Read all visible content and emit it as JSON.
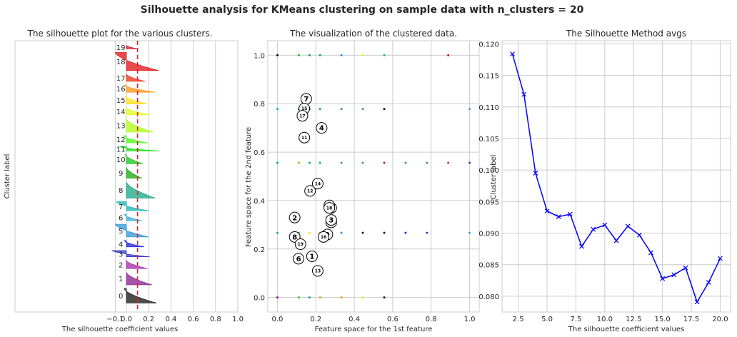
{
  "figure": {
    "suptitle": "Silhouette analysis for KMeans clustering on sample data with n_clusters = 20"
  },
  "chart_data": [
    {
      "type": "area",
      "title": "The silhouette plot for the various clusters.",
      "xlabel": "The silhouette coefficient values",
      "ylabel": "Cluster label",
      "xlim": [
        -1.0,
        1.0
      ],
      "xticks": [
        -0.1,
        0.0,
        0.2,
        0.4,
        0.6,
        0.8,
        1.0
      ],
      "xtick_labels": [
        "−0.1",
        "0.0",
        "0.2",
        "0.4",
        "0.6",
        "0.8",
        "1.0"
      ],
      "ylim": [
        0,
        300
      ],
      "avg_silhouette": 0.1,
      "grid": true,
      "clusters": [
        {
          "label": "0",
          "y0": 10,
          "size": 16,
          "max": 0.27,
          "min": -0.02,
          "color": "#000000"
        },
        {
          "label": "1",
          "y0": 30,
          "size": 14,
          "max": 0.23,
          "min": 0.0,
          "color": "#7e0a87"
        },
        {
          "label": "2",
          "y0": 48,
          "size": 9,
          "max": 0.19,
          "min": 0.0,
          "color": "#9c16a8"
        },
        {
          "label": "3",
          "y0": 61,
          "size": 7,
          "max": 0.21,
          "min": -0.13,
          "color": "#2828c8"
        },
        {
          "label": "4",
          "y0": 72,
          "size": 7,
          "max": 0.16,
          "min": -0.02,
          "color": "#1010d8"
        },
        {
          "label": "5",
          "y0": 83,
          "size": 14,
          "max": 0.2,
          "min": -0.1,
          "color": "#1c8ed4"
        },
        {
          "label": "6",
          "y0": 101,
          "size": 7,
          "max": 0.14,
          "min": -0.02,
          "color": "#20a6d6"
        },
        {
          "label": "7",
          "y0": 112,
          "size": 10,
          "max": 0.2,
          "min": -0.09,
          "color": "#00b0b0"
        },
        {
          "label": "8",
          "y0": 126,
          "size": 18,
          "max": 0.26,
          "min": 0.0,
          "color": "#00a07a"
        },
        {
          "label": "9",
          "y0": 148,
          "size": 12,
          "max": 0.14,
          "min": 0.0,
          "color": "#00a300"
        },
        {
          "label": "10",
          "y0": 164,
          "size": 10,
          "max": 0.15,
          "min": -0.01,
          "color": "#00c400"
        },
        {
          "label": "11",
          "y0": 178,
          "size": 5,
          "max": 0.3,
          "min": -0.06,
          "color": "#00e000"
        },
        {
          "label": "12",
          "y0": 187,
          "size": 8,
          "max": 0.19,
          "min": -0.03,
          "color": "#33ff00"
        },
        {
          "label": "13",
          "y0": 199,
          "size": 15,
          "max": 0.24,
          "min": 0.0,
          "color": "#a8ff00"
        },
        {
          "label": "14",
          "y0": 218,
          "size": 8,
          "max": 0.21,
          "min": 0.0,
          "color": "#dfff00"
        },
        {
          "label": "15",
          "y0": 230,
          "size": 9,
          "max": 0.19,
          "min": -0.01,
          "color": "#ffdd00"
        },
        {
          "label": "16",
          "y0": 243,
          "size": 8,
          "max": 0.26,
          "min": -0.02,
          "color": "#ff8d00"
        },
        {
          "label": "17",
          "y0": 255,
          "size": 8,
          "max": 0.17,
          "min": 0.0,
          "color": "#f02000"
        },
        {
          "label": "18",
          "y0": 267,
          "size": 20,
          "max": 0.29,
          "min": -0.1,
          "color": "#dd0000"
        },
        {
          "label": "19",
          "y0": 291,
          "size": 4,
          "max": 0.1,
          "min": 0.0,
          "color": "#c80000"
        }
      ]
    },
    {
      "type": "scatter",
      "title": "The visualization of the clustered data.",
      "xlabel": "Feature space for the 1st feature",
      "ylabel": "Feature space for the 2nd feature",
      "xlim": [
        -0.05,
        1.05
      ],
      "ylim": [
        -0.06,
        1.06
      ],
      "xticks": [
        0.0,
        0.2,
        0.4,
        0.6,
        0.8,
        1.0
      ],
      "yticks": [
        0.0,
        0.2,
        0.4,
        0.6,
        0.8,
        1.0
      ],
      "xtick_labels": [
        "0.0",
        "0.2",
        "0.4",
        "0.6",
        "0.8",
        "1.0"
      ],
      "ytick_labels": [
        "0.0",
        "0.2",
        "0.4",
        "0.6",
        "0.8",
        "1.0"
      ],
      "grid": true,
      "points": [
        {
          "x": 0.0,
          "y": 1.0,
          "color": "#000000"
        },
        {
          "x": 0.111,
          "y": 1.0,
          "color": "#00c400"
        },
        {
          "x": 0.167,
          "y": 1.0,
          "color": "#00a07a"
        },
        {
          "x": 0.222,
          "y": 1.0,
          "color": "#00a07a"
        },
        {
          "x": 0.333,
          "y": 1.0,
          "color": "#1c8ed4"
        },
        {
          "x": 0.444,
          "y": 1.0,
          "color": "#dfff00"
        },
        {
          "x": 0.556,
          "y": 1.0,
          "color": "#00b0b0"
        },
        {
          "x": 0.889,
          "y": 1.0,
          "color": "#dd0000"
        },
        {
          "x": 0.0,
          "y": 0.778,
          "color": "#00b0b0"
        },
        {
          "x": 0.111,
          "y": 0.778,
          "color": "#1c8ed4"
        },
        {
          "x": 0.167,
          "y": 0.778,
          "color": "#00a07a"
        },
        {
          "x": 0.222,
          "y": 0.778,
          "color": "#00a07a"
        },
        {
          "x": 0.333,
          "y": 0.778,
          "color": "#00a07a"
        },
        {
          "x": 0.444,
          "y": 0.778,
          "color": "#1c8ed4"
        },
        {
          "x": 0.556,
          "y": 0.778,
          "color": "#000000"
        },
        {
          "x": 1.0,
          "y": 0.778,
          "color": "#20a6d6"
        },
        {
          "x": 0.0,
          "y": 0.556,
          "color": "#00a07a"
        },
        {
          "x": 0.111,
          "y": 0.556,
          "color": "#ff8d00"
        },
        {
          "x": 0.167,
          "y": 0.556,
          "color": "#00a07a"
        },
        {
          "x": 0.222,
          "y": 0.556,
          "color": "#00a07a"
        },
        {
          "x": 0.333,
          "y": 0.556,
          "color": "#1c8ed4"
        },
        {
          "x": 0.444,
          "y": 0.556,
          "color": "#1c8ed4"
        },
        {
          "x": 0.556,
          "y": 0.556,
          "color": "#dd0000"
        },
        {
          "x": 0.667,
          "y": 0.556,
          "color": "#00a07a"
        },
        {
          "x": 0.778,
          "y": 0.556,
          "color": "#1c8ed4"
        },
        {
          "x": 0.889,
          "y": 0.556,
          "color": "#f02000"
        },
        {
          "x": 1.0,
          "y": 0.556,
          "color": "#2828c8"
        },
        {
          "x": 0.0,
          "y": 0.267,
          "color": "#00a07a"
        },
        {
          "x": 0.111,
          "y": 0.267,
          "color": "#00c400"
        },
        {
          "x": 0.167,
          "y": 0.267,
          "color": "#ffdd00"
        },
        {
          "x": 0.222,
          "y": 0.267,
          "color": "#ff8d00"
        },
        {
          "x": 0.333,
          "y": 0.267,
          "color": "#1c8ed4"
        },
        {
          "x": 0.444,
          "y": 0.267,
          "color": "#000000"
        },
        {
          "x": 0.556,
          "y": 0.267,
          "color": "#000000"
        },
        {
          "x": 0.667,
          "y": 0.267,
          "color": "#1010d8"
        },
        {
          "x": 0.778,
          "y": 0.267,
          "color": "#2828c8"
        },
        {
          "x": 1.0,
          "y": 0.267,
          "color": "#20a6d6"
        },
        {
          "x": 0.0,
          "y": 0.0,
          "color": "#7e0a87"
        },
        {
          "x": 0.111,
          "y": 0.0,
          "color": "#00c400"
        },
        {
          "x": 0.167,
          "y": 0.0,
          "color": "#00a07a"
        },
        {
          "x": 0.222,
          "y": 0.0,
          "color": "#ff8d00"
        },
        {
          "x": 0.333,
          "y": 0.0,
          "color": "#ff8d00"
        },
        {
          "x": 0.444,
          "y": 0.0,
          "color": "#dfff00"
        },
        {
          "x": 0.556,
          "y": 0.0,
          "color": "#000000"
        }
      ],
      "centers": [
        {
          "label": "0",
          "x": 0.28,
          "y": 0.31
        },
        {
          "label": "1",
          "x": 0.18,
          "y": 0.17
        },
        {
          "label": "2",
          "x": 0.09,
          "y": 0.33
        },
        {
          "label": "3",
          "x": 0.28,
          "y": 0.32
        },
        {
          "label": "4",
          "x": 0.23,
          "y": 0.7
        },
        {
          "label": "5",
          "x": 0.28,
          "y": 0.37
        },
        {
          "label": "6",
          "x": 0.11,
          "y": 0.16
        },
        {
          "label": "7",
          "x": 0.15,
          "y": 0.82
        },
        {
          "label": "8",
          "x": 0.09,
          "y": 0.25
        },
        {
          "label": "9",
          "x": 0.26,
          "y": 0.26
        },
        {
          "label": "10",
          "x": 0.27,
          "y": 0.38
        },
        {
          "label": "11",
          "x": 0.14,
          "y": 0.66
        },
        {
          "label": "12",
          "x": 0.17,
          "y": 0.44
        },
        {
          "label": "13",
          "x": 0.21,
          "y": 0.11
        },
        {
          "label": "14",
          "x": 0.21,
          "y": 0.47
        },
        {
          "label": "15",
          "x": 0.14,
          "y": 0.78
        },
        {
          "label": "16",
          "x": 0.24,
          "y": 0.25
        },
        {
          "label": "17",
          "x": 0.13,
          "y": 0.75
        },
        {
          "label": "18",
          "x": 0.27,
          "y": 0.37
        },
        {
          "label": "19",
          "x": 0.12,
          "y": 0.22
        }
      ]
    },
    {
      "type": "line",
      "title": "The Silhouette Method avgs",
      "xlabel": "The silhouette coefficient values",
      "ylabel": "Cluster label",
      "xlim": [
        1.1,
        20.9
      ],
      "ylim": [
        0.0775,
        0.1205
      ],
      "xticks": [
        2.5,
        5.0,
        7.5,
        10.0,
        12.5,
        15.0,
        17.5,
        20.0
      ],
      "xtick_labels": [
        "2.5",
        "5.0",
        "7.5",
        "10.0",
        "12.5",
        "15.0",
        "17.5",
        "20.0"
      ],
      "yticks": [
        0.08,
        0.085,
        0.09,
        0.095,
        0.1,
        0.105,
        0.11,
        0.115,
        0.12
      ],
      "ytick_labels": [
        "0.080",
        "0.085",
        "0.090",
        "0.095",
        "0.100",
        "0.105",
        "0.110",
        "0.115",
        "0.120"
      ],
      "grid": true,
      "color": "#0000ff",
      "marker": "x",
      "x": [
        2,
        3,
        4,
        5,
        6,
        7,
        8,
        9,
        10,
        11,
        12,
        13,
        14,
        15,
        16,
        17,
        18,
        19,
        20
      ],
      "y": [
        0.1184,
        0.112,
        0.0995,
        0.0935,
        0.0926,
        0.093,
        0.0879,
        0.0906,
        0.0913,
        0.0888,
        0.0911,
        0.0897,
        0.0869,
        0.0828,
        0.0834,
        0.0845,
        0.0791,
        0.0822,
        0.086
      ]
    }
  ]
}
